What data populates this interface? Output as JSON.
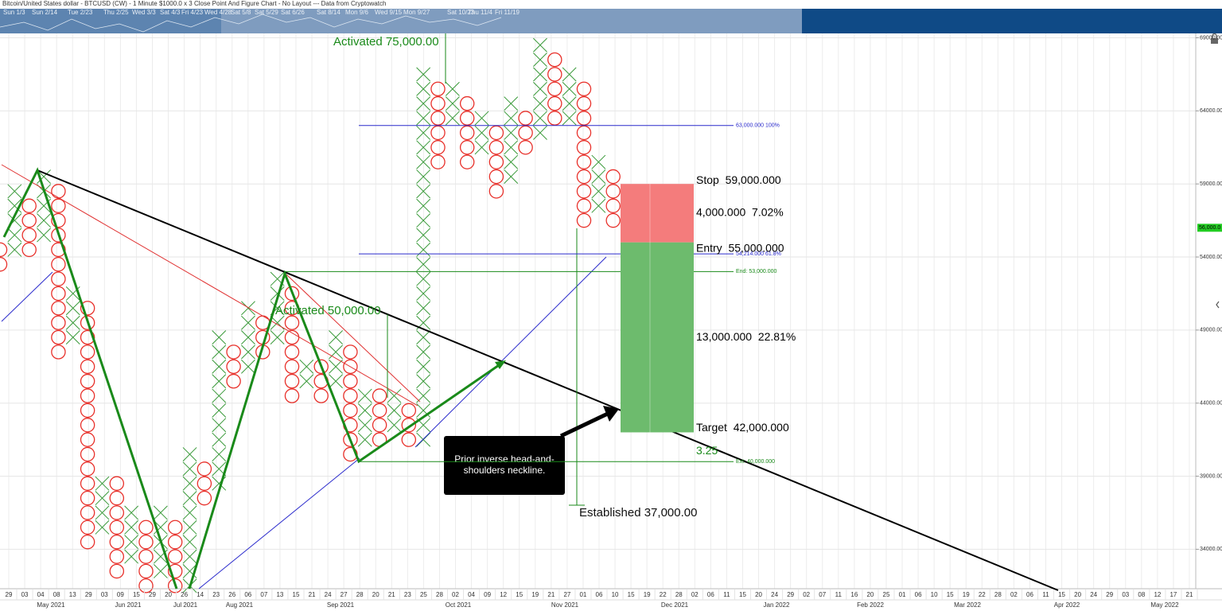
{
  "header": {
    "title": "Bitcoin/United States dollar - BTCUSD (CW) - 1 Minute $1000.0 x 3 Close Point And Figure Chart - No Layout --- Data from Cryptowatch"
  },
  "navigator": {
    "dates": [
      "Sun 1/3",
      "Sun 2/14",
      "Tue 2/23",
      "Thu 2/25",
      "Wed 3/3",
      "Sat 4/3",
      "Fri 4/23",
      "Wed 4/28",
      "Sat 5/8",
      "Sat 5/29",
      "Sat 6/26",
      "Sat 8/14",
      "Mon 9/6",
      "Wed 9/15",
      "Mon 9/27",
      "Sat 10/23",
      "Thu 11/4",
      "Fri 11/19"
    ]
  },
  "chart_data": {
    "type": "point-and-figure",
    "box_size": 1000,
    "ylim": [
      31300,
      69300
    ],
    "yticks": [
      {
        "value": 34000,
        "label": "34000.00"
      },
      {
        "value": 39000,
        "label": "39000.00"
      },
      {
        "value": 44000,
        "label": "44000.00"
      },
      {
        "value": 49000,
        "label": "49000.00"
      },
      {
        "value": 54000,
        "label": "54000.00"
      },
      {
        "value": 59000,
        "label": "59000.00"
      },
      {
        "value": 64000,
        "label": "64000.00"
      },
      {
        "value": 69000,
        "label": "69000.00"
      }
    ],
    "grid": true,
    "x_color": "#3a9a3a",
    "o_color": "#e8302a",
    "columns": [
      {
        "kind": "O",
        "low": 53500,
        "high": 54500
      },
      {
        "kind": "X",
        "low": 54500,
        "high": 58500
      },
      {
        "kind": "O",
        "low": 54500,
        "high": 57500
      },
      {
        "kind": "X",
        "low": 55500,
        "high": 59500
      },
      {
        "kind": "O",
        "low": 47500,
        "high": 58500
      },
      {
        "kind": "X",
        "low": 48500,
        "high": 51500
      },
      {
        "kind": "O",
        "low": 34500,
        "high": 50500
      },
      {
        "kind": "X",
        "low": 35500,
        "high": 38500
      },
      {
        "kind": "O",
        "low": 32500,
        "high": 38500
      },
      {
        "kind": "X",
        "low": 33500,
        "high": 36500
      },
      {
        "kind": "O",
        "low": 31500,
        "high": 35500
      },
      {
        "kind": "X",
        "low": 32500,
        "high": 36500
      },
      {
        "kind": "O",
        "low": 31500,
        "high": 35500
      },
      {
        "kind": "X",
        "low": 31500,
        "high": 40500
      },
      {
        "kind": "O",
        "low": 37500,
        "high": 39500
      },
      {
        "kind": "X",
        "low": 38500,
        "high": 48500
      },
      {
        "kind": "O",
        "low": 45500,
        "high": 47500
      },
      {
        "kind": "X",
        "low": 46500,
        "high": 50500
      },
      {
        "kind": "O",
        "low": 47500,
        "high": 49500
      },
      {
        "kind": "X",
        "low": 48500,
        "high": 52500
      },
      {
        "kind": "O",
        "low": 44500,
        "high": 51500
      },
      {
        "kind": "X",
        "low": 45500,
        "high": 46500
      },
      {
        "kind": "O",
        "low": 44500,
        "high": 46500
      },
      {
        "kind": "X",
        "low": 45500,
        "high": 48500
      },
      {
        "kind": "O",
        "low": 40500,
        "high": 47500
      },
      {
        "kind": "X",
        "low": 41500,
        "high": 44500
      },
      {
        "kind": "O",
        "low": 41500,
        "high": 44500
      },
      {
        "kind": "X",
        "low": 42500,
        "high": 44500
      },
      {
        "kind": "O",
        "low": 41500,
        "high": 43500
      },
      {
        "kind": "X",
        "low": 41500,
        "high": 66500
      },
      {
        "kind": "O",
        "low": 60500,
        "high": 65500
      },
      {
        "kind": "X",
        "low": 63500,
        "high": 65500
      },
      {
        "kind": "O",
        "low": 60500,
        "high": 64500
      },
      {
        "kind": "X",
        "low": 61500,
        "high": 63500
      },
      {
        "kind": "O",
        "low": 58500,
        "high": 62500
      },
      {
        "kind": "X",
        "low": 59500,
        "high": 64500
      },
      {
        "kind": "O",
        "low": 61500,
        "high": 63500
      },
      {
        "kind": "X",
        "low": 62500,
        "high": 68500
      },
      {
        "kind": "O",
        "low": 63500,
        "high": 67500
      },
      {
        "kind": "X",
        "low": 63500,
        "high": 66500
      },
      {
        "kind": "O",
        "low": 56500,
        "high": 65500
      },
      {
        "kind": "X",
        "low": 57500,
        "high": 60500
      },
      {
        "kind": "O",
        "low": 56500,
        "high": 59500
      }
    ],
    "x_labels": [
      "29",
      "03",
      "04",
      "08",
      "13",
      "29",
      "03",
      "09",
      "15",
      "29",
      "20",
      "26",
      "14",
      "23",
      "26",
      "06",
      "07",
      "13",
      "15",
      "21",
      "24",
      "27",
      "28",
      "20",
      "21",
      "23",
      "25",
      "28",
      "02",
      "04",
      "09",
      "12",
      "15",
      "19",
      "21",
      "27",
      "01",
      "06",
      "10",
      "15",
      "19",
      "22",
      "28",
      "02",
      "06",
      "11",
      "15",
      "20",
      "24",
      "29",
      "02",
      "07",
      "11",
      "16",
      "20",
      "25",
      "01",
      "06",
      "10",
      "15",
      "19",
      "22",
      "28",
      "02",
      "06",
      "11",
      "15",
      "20",
      "24",
      "29",
      "03",
      "08",
      "12",
      "17",
      "21"
    ],
    "months": [
      "May 2021",
      "Jun 2021",
      "Jul 2021",
      "Aug 2021",
      "Sep 2021",
      "Oct 2021",
      "Nov 2021",
      "Dec 2021",
      "Jan 2022",
      "Feb 2022",
      "Mar 2022",
      "Apr 2022",
      "May 2022"
    ],
    "last_price": {
      "value": 56000,
      "label": "56,000.0",
      "color": "#22cc22"
    },
    "trade": {
      "stop": 59000,
      "entry": 55000,
      "target": 42000,
      "stop_label": "Stop  59,000.000",
      "risk_label": "4,000.000  7.02%",
      "entry_label": "Entry  55,000.000",
      "reward_label": "13,000.000  22.81%",
      "target_label": "Target  42,000.000",
      "ratio": 3.25,
      "risk_color": "#f47c7c",
      "reward_color": "#6dbb6d"
    },
    "levels": [
      {
        "value": 63000,
        "label": "63,000.000   100%",
        "color": "#2a2acc"
      },
      {
        "value": 54214,
        "label": "54,214.000   61.8%",
        "color": "#2a2acc"
      },
      {
        "value": 53000,
        "label": "End: 53,000.000",
        "color": "#1a8a1a"
      },
      {
        "value": 40000,
        "label": "Ext: 40,000.000",
        "color": "#1a8a1a"
      }
    ],
    "annotations": [
      "Activated 75,000.00",
      "Activated 50,000.00",
      "Established 37,000.00"
    ],
    "callout": [
      "Prior inverse head-and-",
      "shoulders neckline."
    ]
  }
}
